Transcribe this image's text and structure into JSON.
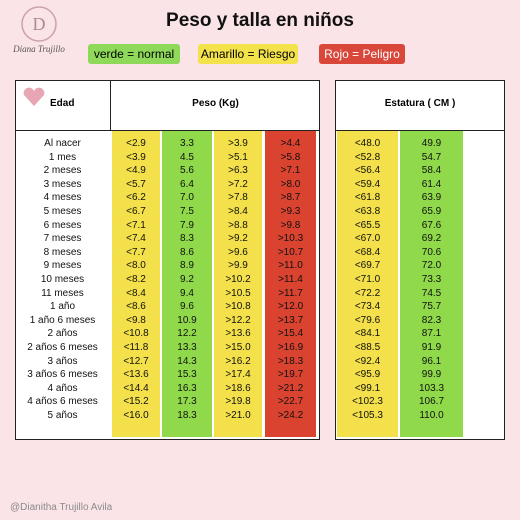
{
  "header": {
    "title": "Peso  y talla en niños",
    "logo": "Diana Trujillo"
  },
  "legend": [
    "verde = normal",
    "Amarillo = Riesgo",
    "Rojo = Peligro"
  ],
  "table": {
    "headers": [
      "Edad",
      "Peso (Kg)",
      "Estatura ( CM )"
    ],
    "rows": [
      [
        "Al nacer",
        "<2.9",
        "3.3",
        ">3.9",
        ">4.4",
        "<48.0",
        "49.9"
      ],
      [
        "1 mes",
        "<3.9",
        "4.5",
        ">5.1",
        ">5.8",
        "<52.8",
        "54.7"
      ],
      [
        "2 meses",
        "<4.9",
        "5.6",
        ">6.3",
        ">7.1",
        "<56.4",
        "58.4"
      ],
      [
        "3 meses",
        "<5.7",
        "6.4",
        ">7.2",
        ">8.0",
        "<59.4",
        "61.4"
      ],
      [
        "4 meses",
        "<6.2",
        "7.0",
        ">7.8",
        ">8.7",
        "<61.8",
        "63.9"
      ],
      [
        "5 meses",
        "<6.7",
        "7.5",
        ">8.4",
        ">9.3",
        "<63.8",
        "65.9"
      ],
      [
        "6 meses",
        "<7.1",
        "7.9",
        ">8.8",
        ">9.8",
        "<65.5",
        "67.6"
      ],
      [
        "7 meses",
        "<7.4",
        "8.3",
        ">9.2",
        ">10.3",
        "<67.0",
        "69.2"
      ],
      [
        "8 meses",
        "<7.7",
        "8.6",
        ">9.6",
        ">10.7",
        "<68.4",
        "70.6"
      ],
      [
        "9 meses",
        "<8.0",
        "8.9",
        ">9.9",
        ">11.0",
        "<69.7",
        "72.0"
      ],
      [
        "10 meses",
        "<8.2",
        "9.2",
        ">10.2",
        ">11.4",
        "<71.0",
        "73.3"
      ],
      [
        "11 meses",
        "<8.4",
        "9.4",
        ">10.5",
        ">11.7",
        "<72.2",
        "74.5"
      ],
      [
        "1 año",
        "<8.6",
        "9.6",
        ">10.8",
        ">12.0",
        "<73.4",
        "75.7"
      ],
      [
        "1 año 6 meses",
        "<9.8",
        "10.9",
        ">12.2",
        ">13.7",
        "<79.6",
        "82.3"
      ],
      [
        "2 años",
        "<10.8",
        "12.2",
        ">13.6",
        ">15.4",
        "<84.1",
        "87.1"
      ],
      [
        "2 años 6 meses",
        "<11.8",
        "13.3",
        ">15.0",
        ">16.9",
        "<88.5",
        "91.9"
      ],
      [
        "3 años",
        "<12.7",
        "14.3",
        ">16.2",
        ">18.3",
        "<92.4",
        "96.1"
      ],
      [
        "3 años 6 meses",
        "<13.6",
        "15.3",
        ">17.4",
        ">19.7",
        "<95.9",
        "99.9"
      ],
      [
        "4 años",
        "<14.4",
        "16.3",
        ">18.6",
        ">21.2",
        "<99.1",
        "103.3"
      ],
      [
        "4 años 6 meses",
        "<15.2",
        "17.3",
        ">19.8",
        ">22.7",
        "<102.3",
        "106.7"
      ],
      [
        "5 años",
        "<16.0",
        "18.3",
        ">21.0",
        ">24.2",
        "<105.3",
        "110.0"
      ]
    ]
  },
  "footer": "@Dianitha Trujillo Avila"
}
